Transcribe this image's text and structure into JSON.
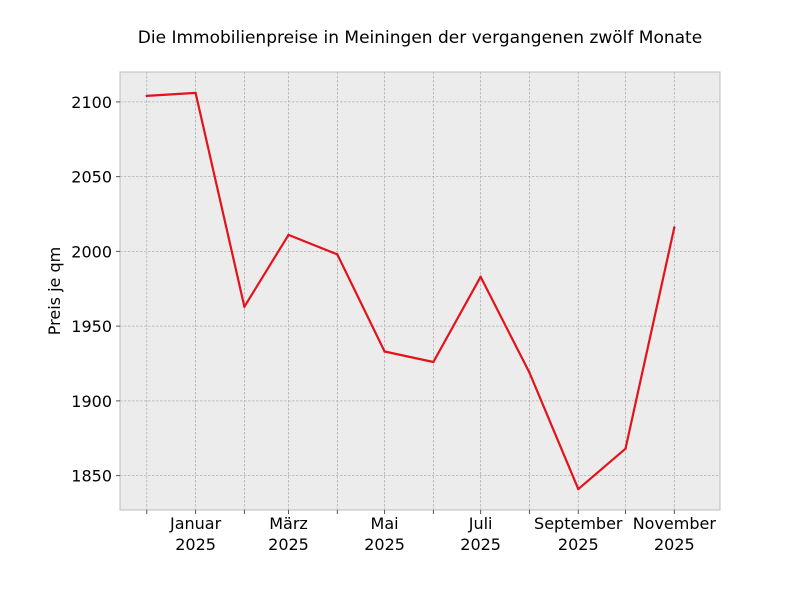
{
  "chart_data": {
    "type": "line",
    "title": "Die Immobilienpreise in Meiningen der vergangenen zwölf Monate",
    "xlabel": "",
    "ylabel": "Preis je qm",
    "x": [
      "2024-12",
      "2025-01",
      "2025-02",
      "2025-03",
      "2025-04",
      "2025-05",
      "2025-06",
      "2025-07",
      "2025-08",
      "2025-09",
      "2025-10",
      "2025-11"
    ],
    "series": [
      {
        "values": [
          2104,
          2106,
          1963,
          2011,
          1998,
          1933,
          1926,
          1983,
          1919,
          1841,
          1868,
          2016
        ],
        "color": "#e3121b"
      }
    ],
    "xlim": [
      "2024-11-14",
      "2025-11-30"
    ],
    "ylim": [
      1827,
      2120
    ],
    "y_ticks": [
      "1850",
      "1900",
      "1950",
      "2000",
      "2050",
      "2100"
    ],
    "x_ticks": [
      {
        "month": "Januar",
        "year": "2025"
      },
      {
        "month": "März",
        "year": "2025"
      },
      {
        "month": "Mai",
        "year": "2025"
      },
      {
        "month": "Juli",
        "year": "2025"
      },
      {
        "month": "September",
        "year": "2025"
      },
      {
        "month": "November",
        "year": "2025"
      }
    ],
    "grid": true,
    "style": {
      "background": "#ececec",
      "grid_color": "#b0b0b0",
      "spine_color": "#bdbdbd"
    }
  }
}
